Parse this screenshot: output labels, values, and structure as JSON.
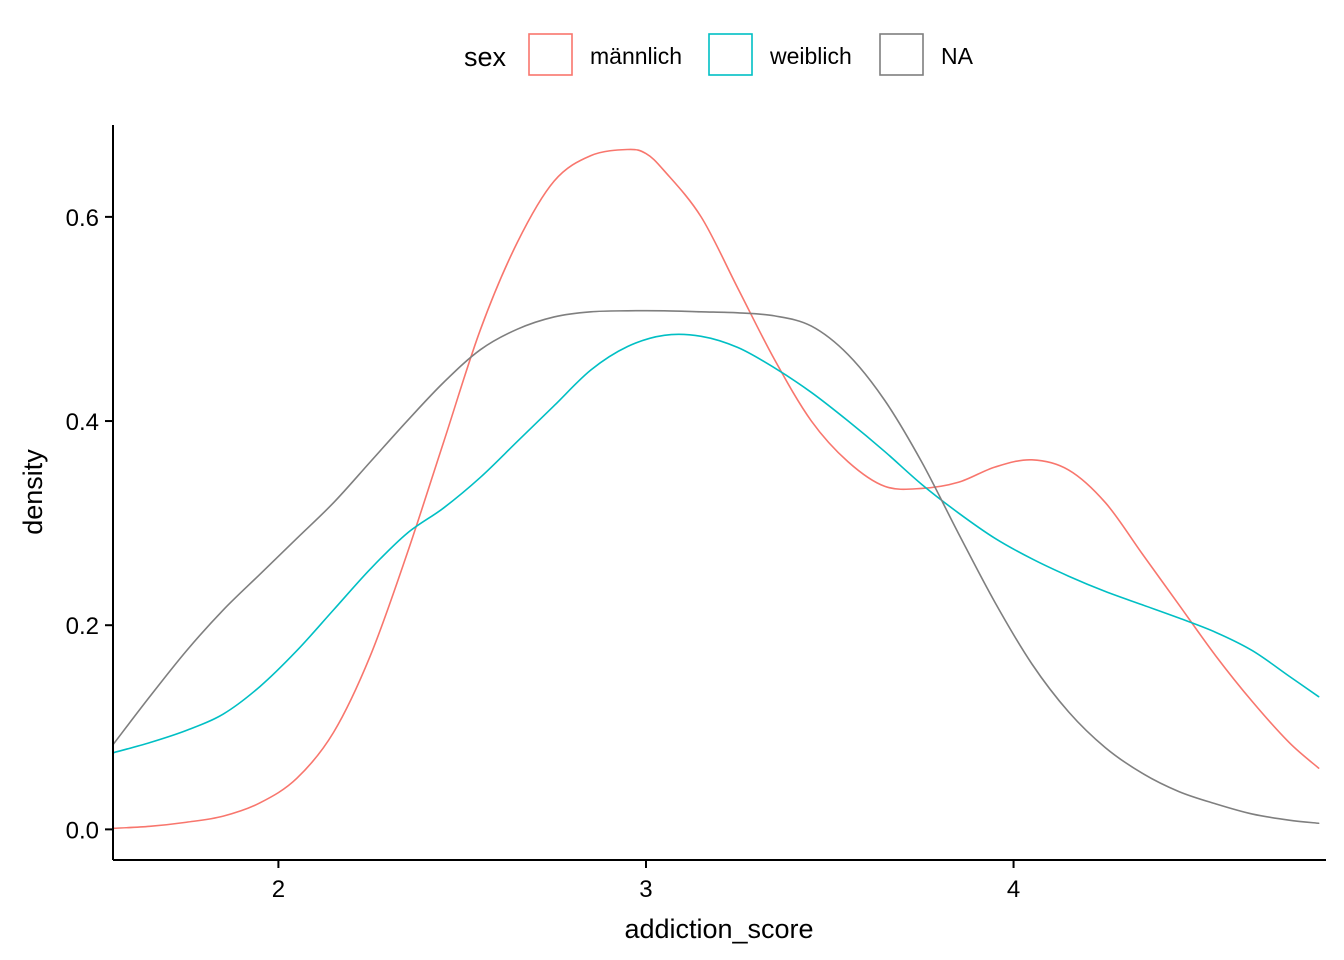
{
  "chart_data": {
    "type": "line",
    "title": "",
    "xlabel": "addiction_score",
    "ylabel": "density",
    "xlim": [
      1.55,
      4.85
    ],
    "ylim": [
      -0.03,
      0.69
    ],
    "x_ticks": [
      2,
      3,
      4
    ],
    "x_tick_labels": [
      "2",
      "3",
      "4"
    ],
    "y_ticks": [
      0.0,
      0.2,
      0.4,
      0.6
    ],
    "y_tick_labels": [
      "0.0",
      "0.2",
      "0.4",
      "0.6"
    ],
    "grid": false,
    "legend": {
      "title": "sex",
      "position": "top"
    },
    "series": [
      {
        "name": "männlich",
        "color": "#F8766D",
        "x": [
          1.55,
          1.65,
          1.75,
          1.85,
          1.95,
          2.05,
          2.15,
          2.25,
          2.35,
          2.45,
          2.55,
          2.65,
          2.75,
          2.85,
          2.95,
          3.0,
          3.05,
          3.15,
          3.25,
          3.35,
          3.45,
          3.55,
          3.65,
          3.75,
          3.85,
          3.95,
          4.05,
          4.15,
          4.25,
          4.35,
          4.45,
          4.55,
          4.65,
          4.75,
          4.83
        ],
        "y": [
          0.001,
          0.003,
          0.007,
          0.013,
          0.026,
          0.05,
          0.095,
          0.17,
          0.27,
          0.38,
          0.49,
          0.575,
          0.635,
          0.66,
          0.666,
          0.662,
          0.645,
          0.6,
          0.53,
          0.46,
          0.4,
          0.36,
          0.336,
          0.334,
          0.34,
          0.355,
          0.362,
          0.352,
          0.32,
          0.27,
          0.22,
          0.17,
          0.125,
          0.085,
          0.06
        ]
      },
      {
        "name": "weiblich",
        "color": "#00BFC4",
        "x": [
          1.55,
          1.65,
          1.75,
          1.85,
          1.95,
          2.05,
          2.15,
          2.25,
          2.35,
          2.45,
          2.55,
          2.65,
          2.75,
          2.85,
          2.95,
          3.05,
          3.15,
          3.25,
          3.35,
          3.45,
          3.55,
          3.65,
          3.75,
          3.85,
          3.95,
          4.05,
          4.15,
          4.25,
          4.35,
          4.45,
          4.55,
          4.65,
          4.75,
          4.83
        ],
        "y": [
          0.075,
          0.085,
          0.097,
          0.113,
          0.14,
          0.175,
          0.215,
          0.255,
          0.29,
          0.315,
          0.345,
          0.38,
          0.415,
          0.45,
          0.473,
          0.484,
          0.483,
          0.472,
          0.452,
          0.428,
          0.4,
          0.37,
          0.338,
          0.31,
          0.285,
          0.265,
          0.248,
          0.233,
          0.22,
          0.207,
          0.193,
          0.175,
          0.15,
          0.13
        ]
      },
      {
        "name": "NA",
        "color": "#7F7F7F",
        "x": [
          1.55,
          1.65,
          1.75,
          1.85,
          1.95,
          2.05,
          2.15,
          2.25,
          2.35,
          2.45,
          2.55,
          2.65,
          2.75,
          2.85,
          2.95,
          3.05,
          3.15,
          3.25,
          3.35,
          3.45,
          3.55,
          3.65,
          3.75,
          3.85,
          3.95,
          4.05,
          4.15,
          4.25,
          4.35,
          4.45,
          4.55,
          4.65,
          4.75,
          4.83
        ],
        "y": [
          0.083,
          0.13,
          0.175,
          0.215,
          0.25,
          0.285,
          0.32,
          0.36,
          0.4,
          0.438,
          0.47,
          0.49,
          0.502,
          0.507,
          0.508,
          0.508,
          0.507,
          0.506,
          0.503,
          0.493,
          0.465,
          0.42,
          0.36,
          0.29,
          0.222,
          0.162,
          0.115,
          0.08,
          0.055,
          0.037,
          0.025,
          0.015,
          0.009,
          0.006
        ]
      }
    ]
  }
}
